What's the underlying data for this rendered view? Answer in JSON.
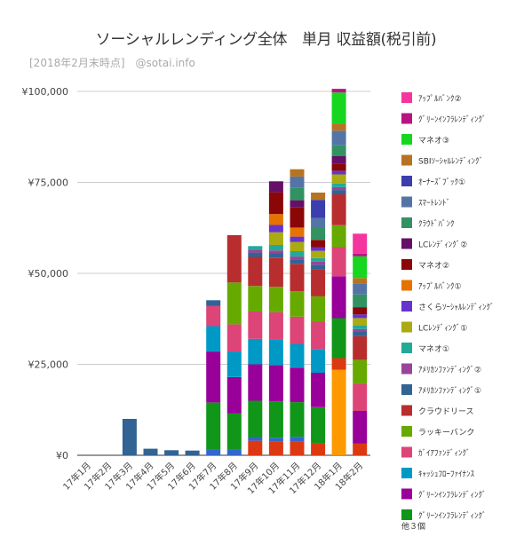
{
  "chart_data": {
    "type": "bar",
    "stacked": true,
    "title": "ソーシャルレンディング全体　単月 収益額(税引前)",
    "subtitle": "[2018年2月末時点]　@sotai.info",
    "xlabel": "",
    "ylabel": "",
    "ylim": [
      0,
      100000
    ],
    "yticks": [
      0,
      25000,
      50000,
      75000,
      100000
    ],
    "ytick_labels": [
      "¥0",
      "¥25,000",
      "¥50,000",
      "¥75,000",
      "¥100,000"
    ],
    "grid": true,
    "legend_position": "right",
    "legend_more": "他３個",
    "categories": [
      "17年1月",
      "17年2月",
      "17年3月",
      "17年4月",
      "17年5月",
      "17年6月",
      "17年7月",
      "17年8月",
      "17年9月",
      "17年10月",
      "17年11月",
      "17年12月",
      "18年1月",
      "18年2月"
    ],
    "series": [
      {
        "name": "ｸﾞﾘｰﾝｲﾝﾌﾗﾚﾝﾃﾞｨﾝｸﾞ",
        "color": "#109618",
        "values": [
          0,
          0,
          0,
          0,
          0,
          0,
          13000,
          10000,
          10000,
          10000,
          9500,
          10000,
          11000,
          0
        ]
      },
      {
        "name": "ｸﾞﾘｰﾝｲﾝﾌﾗﾚﾝﾃﾞｨﾝｸﾞ",
        "color": "#990099",
        "values": [
          0,
          0,
          0,
          0,
          0,
          0,
          14000,
          10000,
          10000,
          10000,
          9500,
          9500,
          11500,
          9000
        ]
      },
      {
        "name": "ｷｬｯｼｭﾌﾛｰﾌｧｲﾅﾝｽ",
        "color": "#0099c6",
        "values": [
          0,
          0,
          0,
          0,
          0,
          0,
          7000,
          7000,
          7000,
          7000,
          6500,
          6500,
          0,
          0
        ]
      },
      {
        "name": "ｶﾞｲｱﾌｧﾝﾃﾞｨﾝｸﾞ",
        "color": "#dd4477",
        "values": [
          0,
          0,
          0,
          0,
          0,
          0,
          5500,
          7500,
          7500,
          7500,
          7500,
          7500,
          8000,
          7500
        ]
      },
      {
        "name": "ラッキーバンク",
        "color": "#66aa00",
        "values": [
          0,
          0,
          0,
          0,
          0,
          0,
          0,
          11500,
          7000,
          7000,
          7000,
          7000,
          6000,
          6500
        ]
      },
      {
        "name": "クラウドリース",
        "color": "#b82e2e",
        "values": [
          0,
          0,
          0,
          0,
          0,
          0,
          0,
          13000,
          8000,
          8000,
          7500,
          7500,
          8500,
          6500
        ]
      },
      {
        "name": "ｱﾒﾘｶﾝﾌｧﾝﾃﾞｨﾝｸﾞ①",
        "color": "#316395",
        "values": [
          0,
          0,
          10000,
          1800,
          1400,
          1300,
          1600,
          0,
          1200,
          1200,
          1200,
          1200,
          1200,
          1200
        ]
      },
      {
        "name": "ｱﾒﾘｶﾝﾌｧﾝﾃﾞｨﾝｸﾞ②",
        "color": "#994499",
        "values": [
          0,
          0,
          0,
          0,
          0,
          0,
          0,
          0,
          800,
          800,
          800,
          800,
          800,
          800
        ]
      },
      {
        "name": "マネオ①",
        "color": "#22aa99",
        "values": [
          0,
          0,
          0,
          0,
          0,
          0,
          0,
          0,
          1000,
          1500,
          1500,
          1000,
          1000,
          1000
        ]
      },
      {
        "name": "LCﾚﾝﾃﾞｨﾝｸﾞ①",
        "color": "#aaaa11",
        "values": [
          0,
          0,
          0,
          0,
          0,
          0,
          0,
          0,
          0,
          3500,
          2500,
          2000,
          2500,
          2000
        ]
      },
      {
        "name": "さくらｿｰｼｬﾙﾚﾝﾃﾞｨﾝｸﾞ",
        "color": "#6633cc",
        "values": [
          0,
          0,
          0,
          0,
          0,
          0,
          0,
          0,
          0,
          2000,
          1500,
          1000,
          1000,
          1000
        ]
      },
      {
        "name": "ｱｯﾌﾟﾙﾊﾞﾝｸ①",
        "color": "#e67300",
        "values": [
          0,
          0,
          0,
          0,
          0,
          0,
          0,
          0,
          0,
          3000,
          2500,
          0,
          0,
          0
        ]
      },
      {
        "name": "マネオ②",
        "color": "#8b0707",
        "values": [
          0,
          0,
          0,
          0,
          0,
          0,
          0,
          0,
          0,
          6000,
          5500,
          2000,
          2000,
          2000
        ]
      },
      {
        "name": "LCﾚﾝﾃﾞｨﾝｸﾞ②",
        "color": "#651067",
        "values": [
          0,
          0,
          0,
          0,
          0,
          0,
          0,
          0,
          0,
          3000,
          2000,
          0,
          2000,
          0
        ]
      },
      {
        "name": "ｸﾗｳﾄﾞﾊﾞﾝｸ",
        "color": "#329262",
        "values": [
          0,
          0,
          0,
          0,
          0,
          0,
          0,
          0,
          0,
          0,
          3500,
          3500,
          3000,
          3500
        ]
      },
      {
        "name": "ｽﾏｰﾄﾚﾝﾄﾞ",
        "color": "#5574a6",
        "values": [
          0,
          0,
          0,
          0,
          0,
          0,
          0,
          0,
          0,
          0,
          3000,
          2500,
          4000,
          3000
        ]
      },
      {
        "name": "ｵｰﾅｰｽﾞﾌﾞｯｸ①",
        "color": "#3b3eac",
        "values": [
          0,
          0,
          0,
          0,
          0,
          0,
          0,
          0,
          0,
          0,
          0,
          5000,
          0,
          0
        ]
      },
      {
        "name": "SBIｿｰｼｬﾙﾚﾝﾃﾞｨﾝｸﾞ",
        "color": "#b77322",
        "values": [
          0,
          0,
          0,
          0,
          0,
          0,
          0,
          0,
          0,
          0,
          2000,
          2000,
          2000,
          1500
        ]
      },
      {
        "name": "マネオ③",
        "color": "#16d620",
        "values": [
          0,
          0,
          0,
          0,
          0,
          0,
          0,
          0,
          0,
          0,
          0,
          0,
          8500,
          6000
        ]
      },
      {
        "name": "ｸﾞﾘｰﾝｲﾝﾌﾗﾚﾝﾃﾞｨﾝｸﾞ",
        "color": "#b91383",
        "values": [
          0,
          0,
          0,
          0,
          0,
          0,
          0,
          0,
          0,
          0,
          0,
          0,
          1000,
          700
        ]
      },
      {
        "name": "ｱｯﾌﾟﾙﾊﾞﾝｸ②",
        "color": "#f4359e",
        "values": [
          0,
          0,
          0,
          0,
          0,
          0,
          0,
          0,
          0,
          0,
          0,
          0,
          0,
          5500
        ]
      }
    ],
    "extra_bottom": [
      {
        "color": "#ff9900",
        "values": [
          0,
          0,
          0,
          0,
          0,
          0,
          0,
          0,
          0,
          0,
          0,
          0,
          23500,
          0
        ]
      },
      {
        "color": "#dc3912",
        "values": [
          0,
          0,
          0,
          0,
          0,
          0,
          0,
          0,
          4000,
          3800,
          3800,
          3200,
          3200,
          3200
        ]
      },
      {
        "color": "#3366cc",
        "values": [
          0,
          0,
          0,
          0,
          0,
          0,
          1500,
          1500,
          1000,
          1000,
          1300,
          0,
          0,
          0
        ]
      }
    ]
  }
}
